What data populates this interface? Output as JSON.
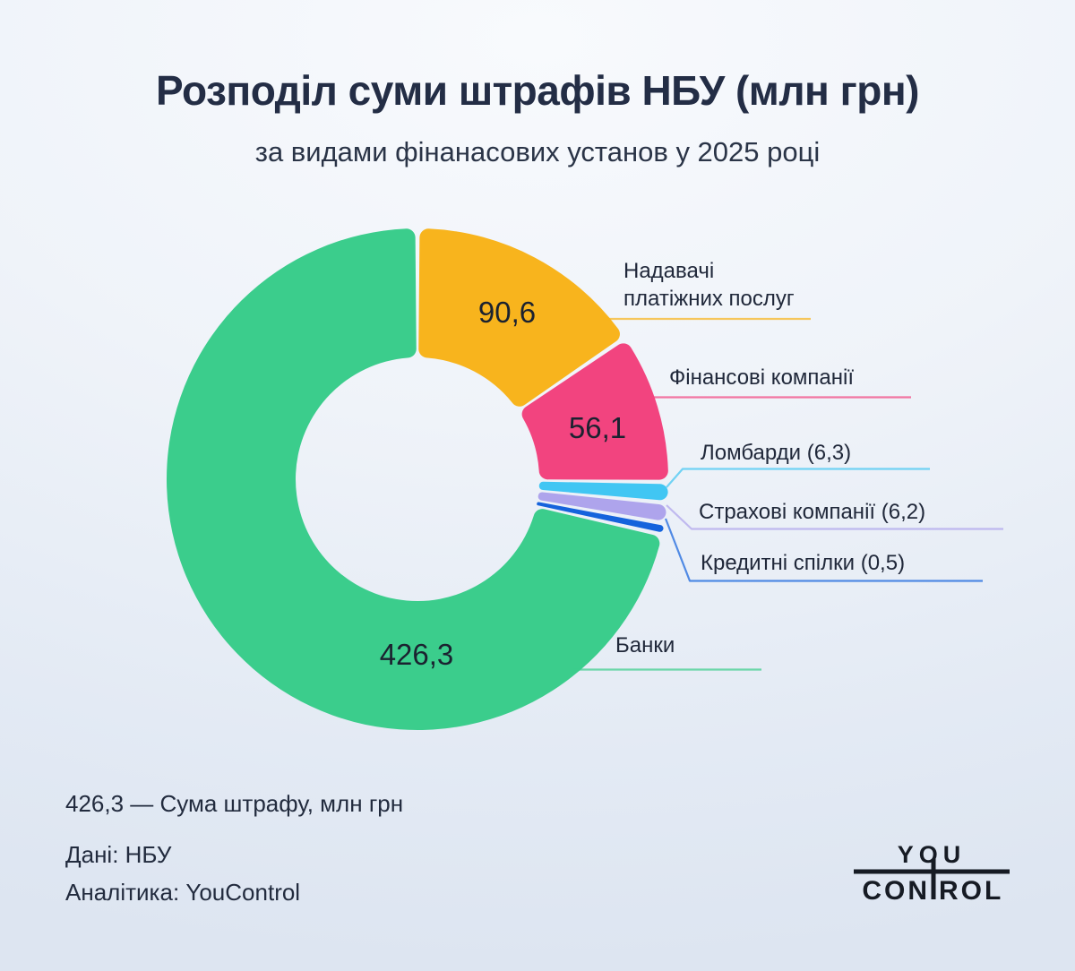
{
  "title": "Розподіл суми штрафів НБУ (млн грн)",
  "subtitle": "за видами фінанасових установ у 2025 році",
  "chart_data": {
    "type": "pie",
    "variant": "donut",
    "title": "Розподіл суми штрафів НБУ (млн грн)",
    "subtitle": "за видами фінанасових установ у 2025 році",
    "unit": "млн грн",
    "start_angle_deg": 0,
    "direction": "clockwise",
    "legend_position": "callouts-right",
    "segments": [
      {
        "name": "Надавачі платіжних послуг",
        "value": 90.6,
        "slice_label": "90,6",
        "callout": "Надавачі\nплатіжних послуг",
        "color": "#f8b41d"
      },
      {
        "name": "Фінансові компанії",
        "value": 56.1,
        "slice_label": "56,1",
        "callout": "Фінансові компанії",
        "color": "#f2447f"
      },
      {
        "name": "Ломбарди",
        "value": 6.3,
        "callout": "Ломбарди (6,3)",
        "color": "#41c6f3"
      },
      {
        "name": "Страхові компанії",
        "value": 6.2,
        "callout": "Страхові компанії (6,2)",
        "color": "#aea4ec"
      },
      {
        "name": "Кредитні спілки",
        "value": 0.5,
        "callout": "Кредитні спілки (0,5)",
        "color": "#1563dc"
      },
      {
        "name": "Банки",
        "value": 426.3,
        "slice_label": "426,3",
        "callout": "Банки",
        "color": "#3bcd8c"
      }
    ]
  },
  "footnote": {
    "legend_hint": "426,3 — Сума штрафу, млн грн",
    "source": "Дані: НБУ",
    "analytics": "Аналітика: YouControl"
  },
  "logo": {
    "you": "YOU",
    "con": "CON",
    "rol": "ROL"
  }
}
